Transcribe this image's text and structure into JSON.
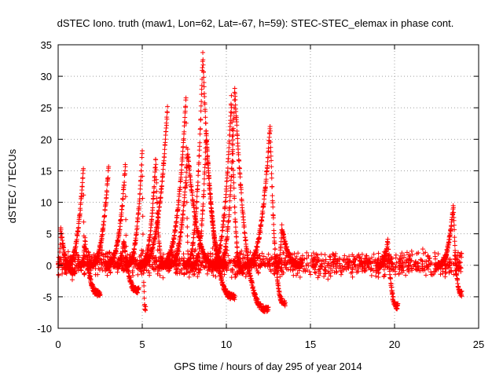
{
  "chart_data": {
    "type": "scatter",
    "title": "dSTEC Iono. truth (maw1, Lon=62, Lat=-67, h=59): STEC-STEC_elemax in phase cont.",
    "xlabel": "GPS time / hours of day 295 of year 2014",
    "ylabel": "dSTEC  / TECUs",
    "xlim": [
      0,
      25
    ],
    "ylim": [
      -10,
      35
    ],
    "xticks": [
      0,
      5,
      10,
      15,
      20,
      25
    ],
    "yticks": [
      -10,
      -5,
      0,
      5,
      10,
      15,
      20,
      25,
      30,
      35
    ],
    "xtick_labels": [
      "0",
      "5",
      "10",
      "15",
      "20",
      "25"
    ],
    "ytick_labels": [
      "-10",
      "-5",
      "0",
      "5",
      "10",
      "15",
      "20",
      "25",
      "30",
      "35"
    ],
    "grid": true,
    "marker": "plus",
    "color": "#ff0000",
    "background_noise": {
      "x_range": [
        0,
        24
      ],
      "y_range": [
        -2.5,
        3
      ]
    },
    "arcs": [
      {
        "t_start": 0.0,
        "t_end": 1.0,
        "peak_t": 0.15,
        "peak": 6,
        "end_value": -1
      },
      {
        "t_start": 0.4,
        "t_end": 1.6,
        "peak_t": 1.5,
        "peak": 15.5,
        "end_value": 0
      },
      {
        "t_start": 1.3,
        "t_end": 2.5,
        "peak_t": 1.6,
        "peak": 4,
        "end_value": -4.5
      },
      {
        "t_start": 1.8,
        "t_end": 3.0,
        "peak_t": 3.0,
        "peak": 15.5,
        "end_value": 0
      },
      {
        "t_start": 2.8,
        "t_end": 4.1,
        "peak_t": 4.0,
        "peak": 16,
        "end_value": 0
      },
      {
        "t_start": 3.5,
        "t_end": 4.8,
        "peak_t": 3.9,
        "peak": 4,
        "end_value": -4
      },
      {
        "t_start": 4.0,
        "t_end": 5.2,
        "peak_t": 5.0,
        "peak": 18,
        "end_value": -6.8
      },
      {
        "t_start": 4.8,
        "t_end": 6.3,
        "peak_t": 5.8,
        "peak": 17,
        "end_value": 0
      },
      {
        "t_start": 4.8,
        "t_end": 6.5,
        "peak_t": 6.5,
        "peak": 25,
        "end_value": 0
      },
      {
        "t_start": 6.0,
        "t_end": 7.8,
        "peak_t": 7.6,
        "peak": 26.5,
        "end_value": 0
      },
      {
        "t_start": 6.5,
        "t_end": 9.5,
        "peak_t": 7.7,
        "peak": 18,
        "end_value": 0
      },
      {
        "t_start": 7.5,
        "t_end": 10.0,
        "peak_t": 8.6,
        "peak": 33.5,
        "end_value": 0
      },
      {
        "t_start": 8.0,
        "t_end": 10.5,
        "peak_t": 8.8,
        "peak": 21,
        "end_value": -5
      },
      {
        "t_start": 9.5,
        "t_end": 12.5,
        "peak_t": 10.5,
        "peak": 28,
        "end_value": -7
      },
      {
        "t_start": 9.0,
        "t_end": 11.0,
        "peak_t": 10.3,
        "peak": 26.5,
        "end_value": -1
      },
      {
        "t_start": 11.0,
        "t_end": 13.5,
        "peak_t": 12.6,
        "peak": 22,
        "end_value": -6
      },
      {
        "t_start": 13.0,
        "t_end": 14.5,
        "peak_t": 13.3,
        "peak": 6,
        "end_value": 0
      },
      {
        "t_start": 19.0,
        "t_end": 20.2,
        "peak_t": 19.6,
        "peak": 4,
        "end_value": -6.5
      },
      {
        "t_start": 22.5,
        "t_end": 24.0,
        "peak_t": 23.5,
        "peak": 9.5,
        "end_value": -4.5
      }
    ]
  }
}
